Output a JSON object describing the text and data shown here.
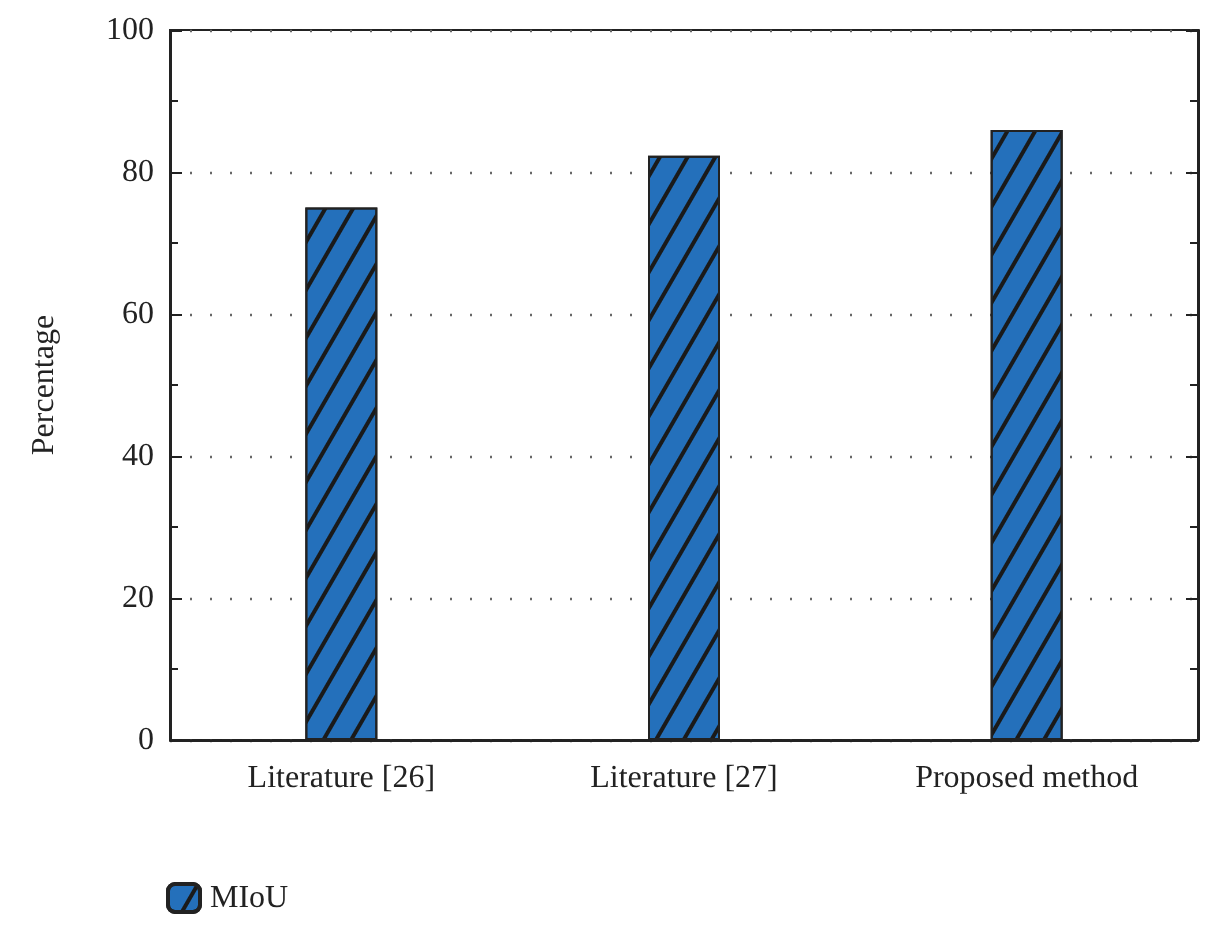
{
  "chart_data": {
    "type": "bar",
    "ylabel": "Percentage",
    "categories": [
      "Literature [26]",
      "Literature [27]",
      "Proposed method"
    ],
    "series": [
      {
        "name": "MIoU",
        "color": "#2470bb",
        "values": [
          75,
          82.3,
          85.9
        ]
      }
    ],
    "ylim": [
      0,
      100
    ],
    "yticks": [
      0,
      20,
      40,
      60,
      80,
      100
    ],
    "grid": "y",
    "legend": "bottom left"
  }
}
